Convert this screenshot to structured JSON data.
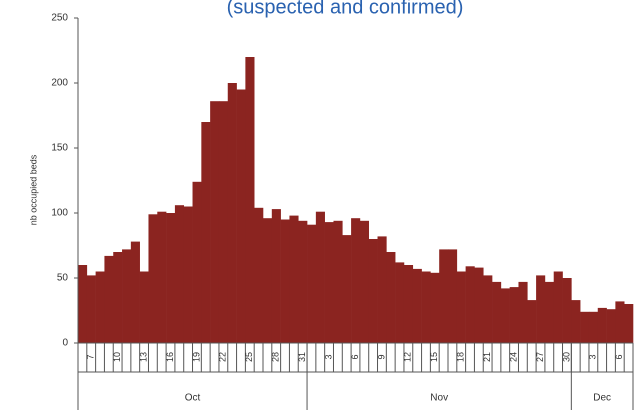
{
  "chart_data": {
    "type": "bar",
    "title": "(suspected and confirmed)",
    "y_label": "nb occupied beds",
    "color": "#8b2420",
    "categories": [
      null,
      "7",
      null,
      null,
      "10",
      null,
      null,
      "13",
      null,
      null,
      "16",
      null,
      null,
      "19",
      null,
      null,
      "22",
      null,
      null,
      "25",
      null,
      null,
      "28",
      null,
      null,
      "31",
      null,
      null,
      "3",
      null,
      null,
      "6",
      null,
      null,
      "9",
      null,
      null,
      "12",
      null,
      null,
      "15",
      null,
      null,
      "18",
      null,
      null,
      "21",
      null,
      null,
      "24",
      null,
      null,
      "27",
      null,
      null,
      "30",
      null,
      null,
      "3",
      null,
      null,
      "6",
      null
    ],
    "values": [
      60,
      52,
      55,
      67,
      70,
      72,
      78,
      55,
      99,
      101,
      100,
      106,
      105,
      124,
      170,
      186,
      186,
      200,
      195,
      220,
      104,
      96,
      103,
      95,
      98,
      94,
      91,
      101,
      93,
      94,
      83,
      96,
      94,
      80,
      82,
      70,
      62,
      60,
      57,
      55,
      54,
      72,
      72,
      55,
      59,
      58,
      52,
      47,
      42,
      43,
      47,
      33,
      52,
      47,
      55,
      50,
      33,
      24,
      24,
      27,
      26,
      32,
      30
    ],
    "months": [
      "Oct",
      "Nov",
      "Dec"
    ],
    "ylim": [
      0,
      250
    ],
    "yticks": [
      0,
      50,
      100,
      150,
      200,
      250
    ],
    "grid": false
  }
}
